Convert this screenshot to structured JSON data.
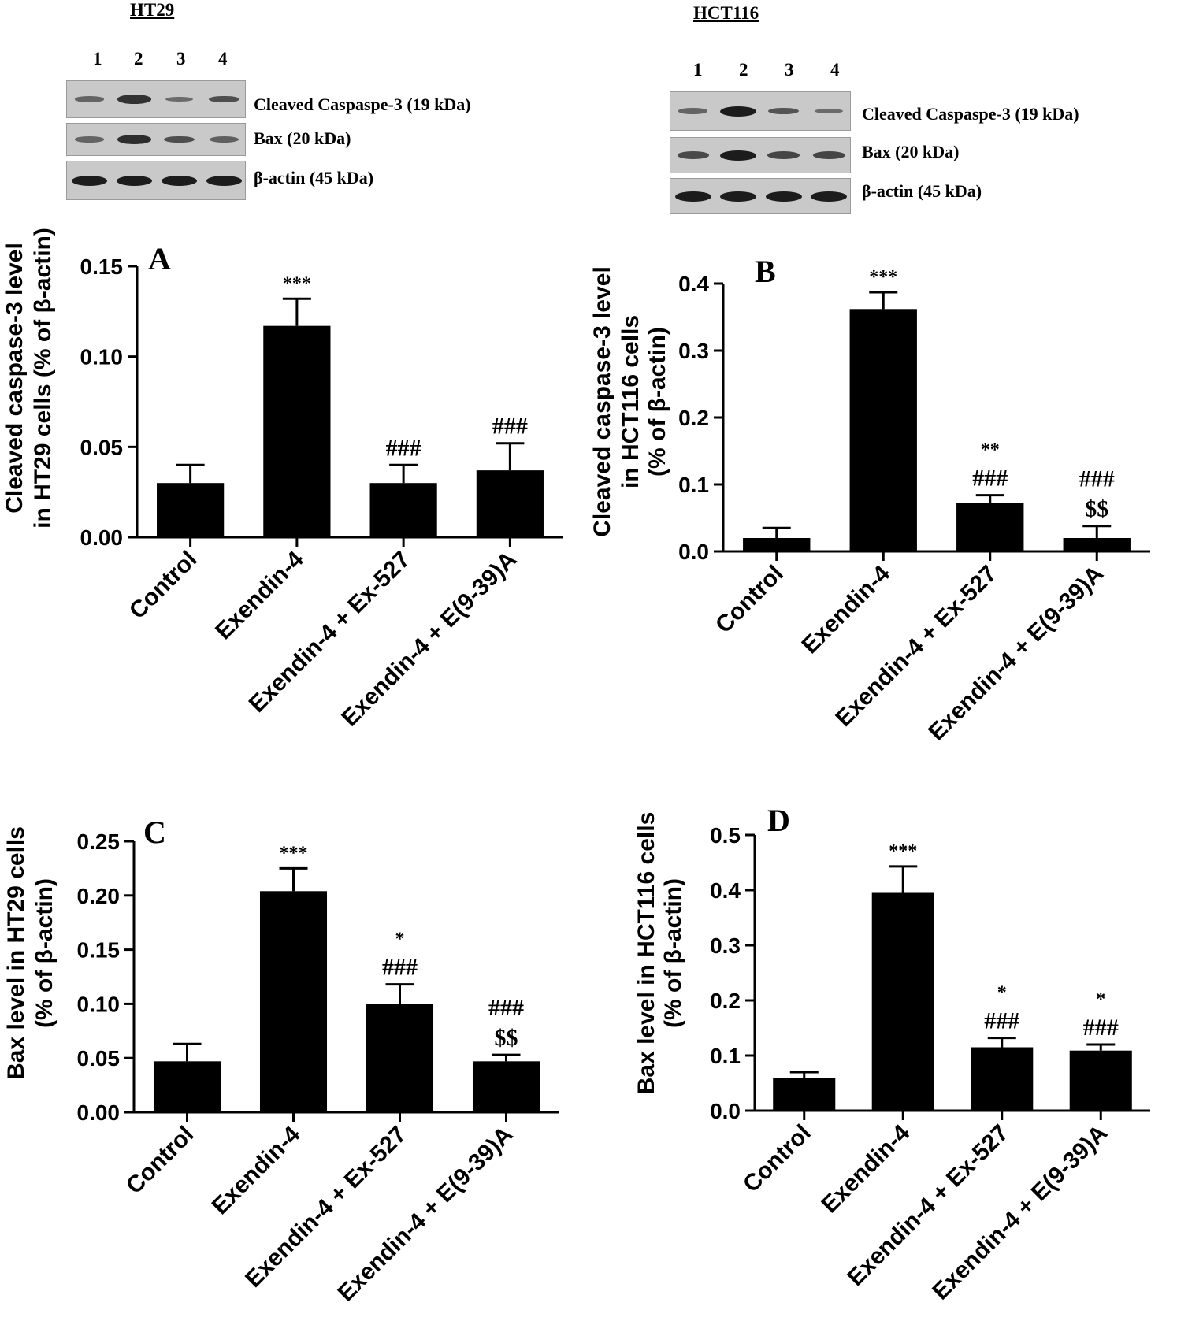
{
  "blots": [
    {
      "title": "HT29",
      "lanes": [
        "1",
        "2",
        "3",
        "4"
      ],
      "strips": [
        {
          "label": "Cleaved Caspaspe-3 (19 kDa)",
          "intensity": [
            0.35,
            0.8,
            0.3,
            0.55
          ]
        },
        {
          "label": "Bax  (20 kDa)",
          "intensity": [
            0.35,
            0.85,
            0.55,
            0.4
          ]
        },
        {
          "label": "β-actin (45 kDa)",
          "intensity": [
            1.0,
            1.0,
            1.0,
            1.0
          ]
        }
      ]
    },
    {
      "title": "HCT116",
      "lanes": [
        "1",
        "2",
        "3",
        "4"
      ],
      "strips": [
        {
          "label": "Cleaved Caspaspe-3 (19 kDa)",
          "intensity": [
            0.35,
            1.0,
            0.5,
            0.3
          ]
        },
        {
          "label": "Bax (20 kDa)",
          "intensity": [
            0.6,
            1.0,
            0.65,
            0.65
          ]
        },
        {
          "label": "β-actin (45 kDa)",
          "intensity": [
            1.0,
            1.0,
            1.0,
            1.0
          ]
        }
      ]
    }
  ],
  "chart_data": [
    {
      "type": "bar",
      "panel": "A",
      "title": "",
      "ylabel": [
        "Cleaved caspase-3 level",
        "in HT29 cells  (% of β-actin)"
      ],
      "categories": [
        "Control",
        "Exendin-4",
        "Exendin-4 + Ex-527",
        "Exendin-4 + E(9-39)A"
      ],
      "values": [
        0.03,
        0.117,
        0.03,
        0.037
      ],
      "errors": [
        0.01,
        0.015,
        0.01,
        0.015
      ],
      "annotations": [
        [],
        [
          "***"
        ],
        [
          "###"
        ],
        [
          "###"
        ]
      ],
      "ylim": [
        0,
        0.15
      ],
      "yticks": [
        0,
        0.05,
        0.1,
        0.15
      ],
      "yticklabels": [
        "0.00",
        "0.05",
        "0.10",
        "0.15"
      ]
    },
    {
      "type": "bar",
      "panel": "B",
      "title": "",
      "ylabel": [
        "Cleaved caspase-3 level",
        "in HCT116 cells",
        "(% of β-actin)"
      ],
      "categories": [
        "Control",
        "Exendin-4",
        "Exendin-4 + Ex-527",
        "Exendin-4 + E(9-39)A"
      ],
      "values": [
        0.02,
        0.362,
        0.072,
        0.02
      ],
      "errors": [
        0.015,
        0.025,
        0.012,
        0.018
      ],
      "annotations": [
        [],
        [
          "***"
        ],
        [
          "**",
          "###"
        ],
        [
          "###",
          "$$"
        ]
      ],
      "ylim": [
        0,
        0.4
      ],
      "yticks": [
        0,
        0.1,
        0.2,
        0.3,
        0.4
      ],
      "yticklabels": [
        "0.0",
        "0.1",
        "0.2",
        "0.3",
        "0.4"
      ]
    },
    {
      "type": "bar",
      "panel": "C",
      "title": "",
      "ylabel": [
        "Bax level in HT29 cells",
        "(% of β-actin)"
      ],
      "categories": [
        "Control",
        "Exendin-4",
        "Exendin-4 + Ex-527",
        "Exendin-4 + E(9-39)A"
      ],
      "values": [
        0.047,
        0.204,
        0.1,
        0.047
      ],
      "errors": [
        0.016,
        0.021,
        0.018,
        0.006
      ],
      "annotations": [
        [],
        [
          "***"
        ],
        [
          "*",
          "###"
        ],
        [
          "###",
          "$$"
        ]
      ],
      "ylim": [
        0,
        0.25
      ],
      "yticks": [
        0,
        0.05,
        0.1,
        0.15,
        0.2,
        0.25
      ],
      "yticklabels": [
        "0.00",
        "0.05",
        "0.10",
        "0.15",
        "0.20",
        "0.25"
      ]
    },
    {
      "type": "bar",
      "panel": "D",
      "title": "",
      "ylabel": [
        "Bax level in HCT116 cells",
        "(% of β-actin)"
      ],
      "categories": [
        "Control",
        "Exendin-4",
        "Exendin-4 + Ex-527",
        "Exendin-4 + E(9-39)A"
      ],
      "values": [
        0.06,
        0.395,
        0.115,
        0.109
      ],
      "errors": [
        0.01,
        0.048,
        0.017,
        0.011
      ],
      "annotations": [
        [],
        [
          "***"
        ],
        [
          "*",
          "###"
        ],
        [
          "*",
          "###"
        ]
      ],
      "ylim": [
        0,
        0.5
      ],
      "yticks": [
        0,
        0.1,
        0.2,
        0.3,
        0.4,
        0.5
      ],
      "yticklabels": [
        "0.0",
        "0.1",
        "0.2",
        "0.3",
        "0.4",
        "0.5"
      ]
    }
  ]
}
